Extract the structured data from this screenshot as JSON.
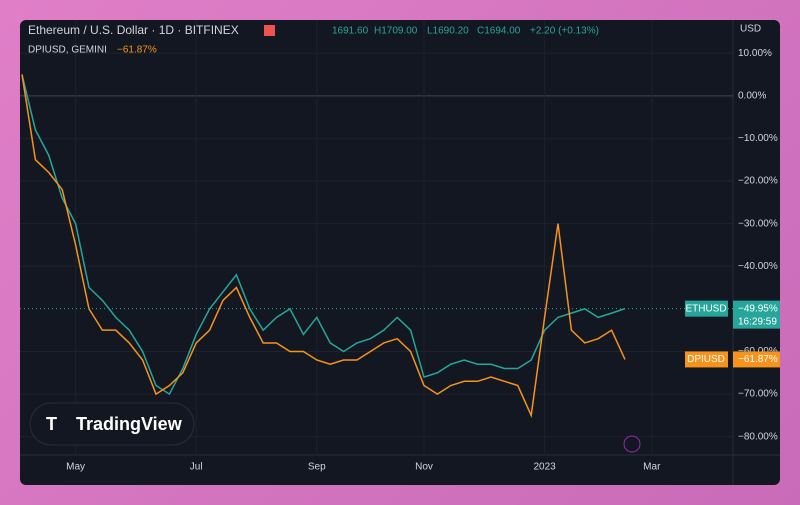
{
  "header": {
    "symbol": "Ethereum / U.S. Dollar · 1D · BITFINEX",
    "open": "1691.60",
    "high": "H1709.00",
    "low": "L1690.20",
    "close": "C1694.00",
    "change": "+2.20 (+0.13%)",
    "compare": "DPIUSD, GEMINI",
    "compare_change": "−61.87%",
    "currency": "USD",
    "logo": "TradingView",
    "countdown": "16:29:59"
  },
  "chart_data": {
    "type": "line",
    "categories": [
      null,
      null,
      null,
      null,
      "May",
      null,
      null,
      null,
      null,
      null,
      null,
      null,
      null,
      "Jul",
      null,
      null,
      null,
      null,
      null,
      null,
      null,
      null,
      "Sep",
      null,
      null,
      null,
      null,
      null,
      null,
      null,
      "Nov",
      null,
      null,
      null,
      null,
      null,
      null,
      null,
      null,
      "2023",
      null,
      null,
      null,
      null,
      null,
      null,
      null,
      "Mar"
    ],
    "series": [
      {
        "name": "ETHUSD",
        "color": "#26a69a",
        "last_label": "−49.95%",
        "values": [
          5,
          -8,
          -14,
          -24,
          -30,
          -45,
          -48,
          -52,
          -55,
          -60,
          -68,
          -70,
          -64,
          -56,
          -50,
          -46,
          -42,
          -50,
          -55,
          -52,
          -50,
          -56,
          -52,
          -58,
          -60,
          -58,
          -57,
          -55,
          -52,
          -55,
          -66,
          -65,
          -63,
          -62,
          -63,
          -63,
          -64,
          -64,
          -62,
          -55,
          -52,
          -51,
          -50,
          -52,
          -51,
          -49.95,
          null,
          null
        ]
      },
      {
        "name": "DPIUSD",
        "color": "#f7931a",
        "last_label": "−61.87%",
        "values": [
          5,
          -15,
          -18,
          -22,
          -35,
          -50,
          -55,
          -55,
          -58,
          -62,
          -70,
          -68,
          -65,
          -58,
          -55,
          -48,
          -45,
          -52,
          -58,
          -58,
          -60,
          -60,
          -62,
          -63,
          -62,
          -62,
          -60,
          -58,
          -57,
          -60,
          -68,
          -70,
          -68,
          -67,
          -67,
          -66,
          -67,
          -68,
          -75,
          -52,
          -30,
          -55,
          -58,
          -57,
          -55,
          -61.87,
          null,
          null
        ]
      }
    ],
    "ylim": [
      -84.3,
      13.1
    ],
    "yticks": [
      {
        "value": 10,
        "label": "10.00%"
      },
      {
        "value": 0,
        "label": "0.00%"
      },
      {
        "value": -10,
        "label": "−10.00%"
      },
      {
        "value": -20,
        "label": "−20.00%"
      },
      {
        "value": -30,
        "label": "−30.00%"
      },
      {
        "value": -40,
        "label": "−40.00%"
      },
      {
        "value": -60,
        "label": "−60.00%"
      },
      {
        "value": -70,
        "label": "−70.00%"
      },
      {
        "value": -80,
        "label": "−80.00%"
      }
    ],
    "grid": true
  }
}
